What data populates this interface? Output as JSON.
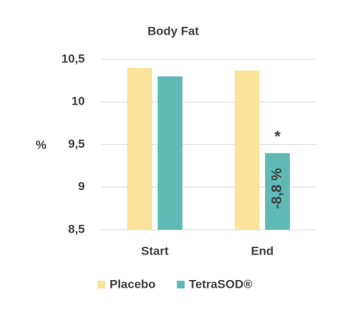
{
  "chart_data": {
    "type": "bar",
    "title": "Body Fat",
    "y_label": "%",
    "categories": [
      "Start",
      "End"
    ],
    "series": [
      {
        "name": "Placebo",
        "color": "#fbe39b",
        "values": [
          10.4,
          10.37
        ]
      },
      {
        "name": "TetraSOD®",
        "color": "#5fbab6",
        "values": [
          10.3,
          9.4
        ]
      }
    ],
    "annotations": [
      "*",
      "-8,8 %"
    ],
    "ylim": [
      8.5,
      10.5
    ],
    "yticks": [
      {
        "value": 8.5,
        "label": "8,5"
      },
      9,
      {
        "value": 9.5,
        "label": "9,5"
      },
      10,
      {
        "value": 10.5,
        "label": "10,5"
      }
    ],
    "grid": true,
    "legend": "bottom"
  }
}
